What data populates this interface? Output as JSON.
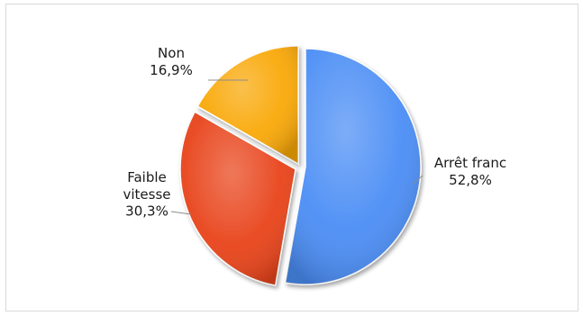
{
  "chart_data": {
    "type": "pie",
    "title": "",
    "slices": [
      {
        "name": "Arrêt franc",
        "value": 52.8,
        "label_lines": [
          "Arrêt franc",
          "52,8%"
        ],
        "color": "#4a8df5"
      },
      {
        "name": "Faible vitesse",
        "value": 30.3,
        "label_lines": [
          "Faible",
          "vitesse",
          "30,3%"
        ],
        "color": "#e8431a"
      },
      {
        "name": "Non",
        "value": 16.9,
        "label_lines": [
          "Non",
          "16,9%"
        ],
        "color": "#f9a807"
      }
    ],
    "start_angle": "12 o'clock",
    "direction": "clockwise",
    "legend": "none",
    "leader_line_color": "#8c8c8c"
  }
}
